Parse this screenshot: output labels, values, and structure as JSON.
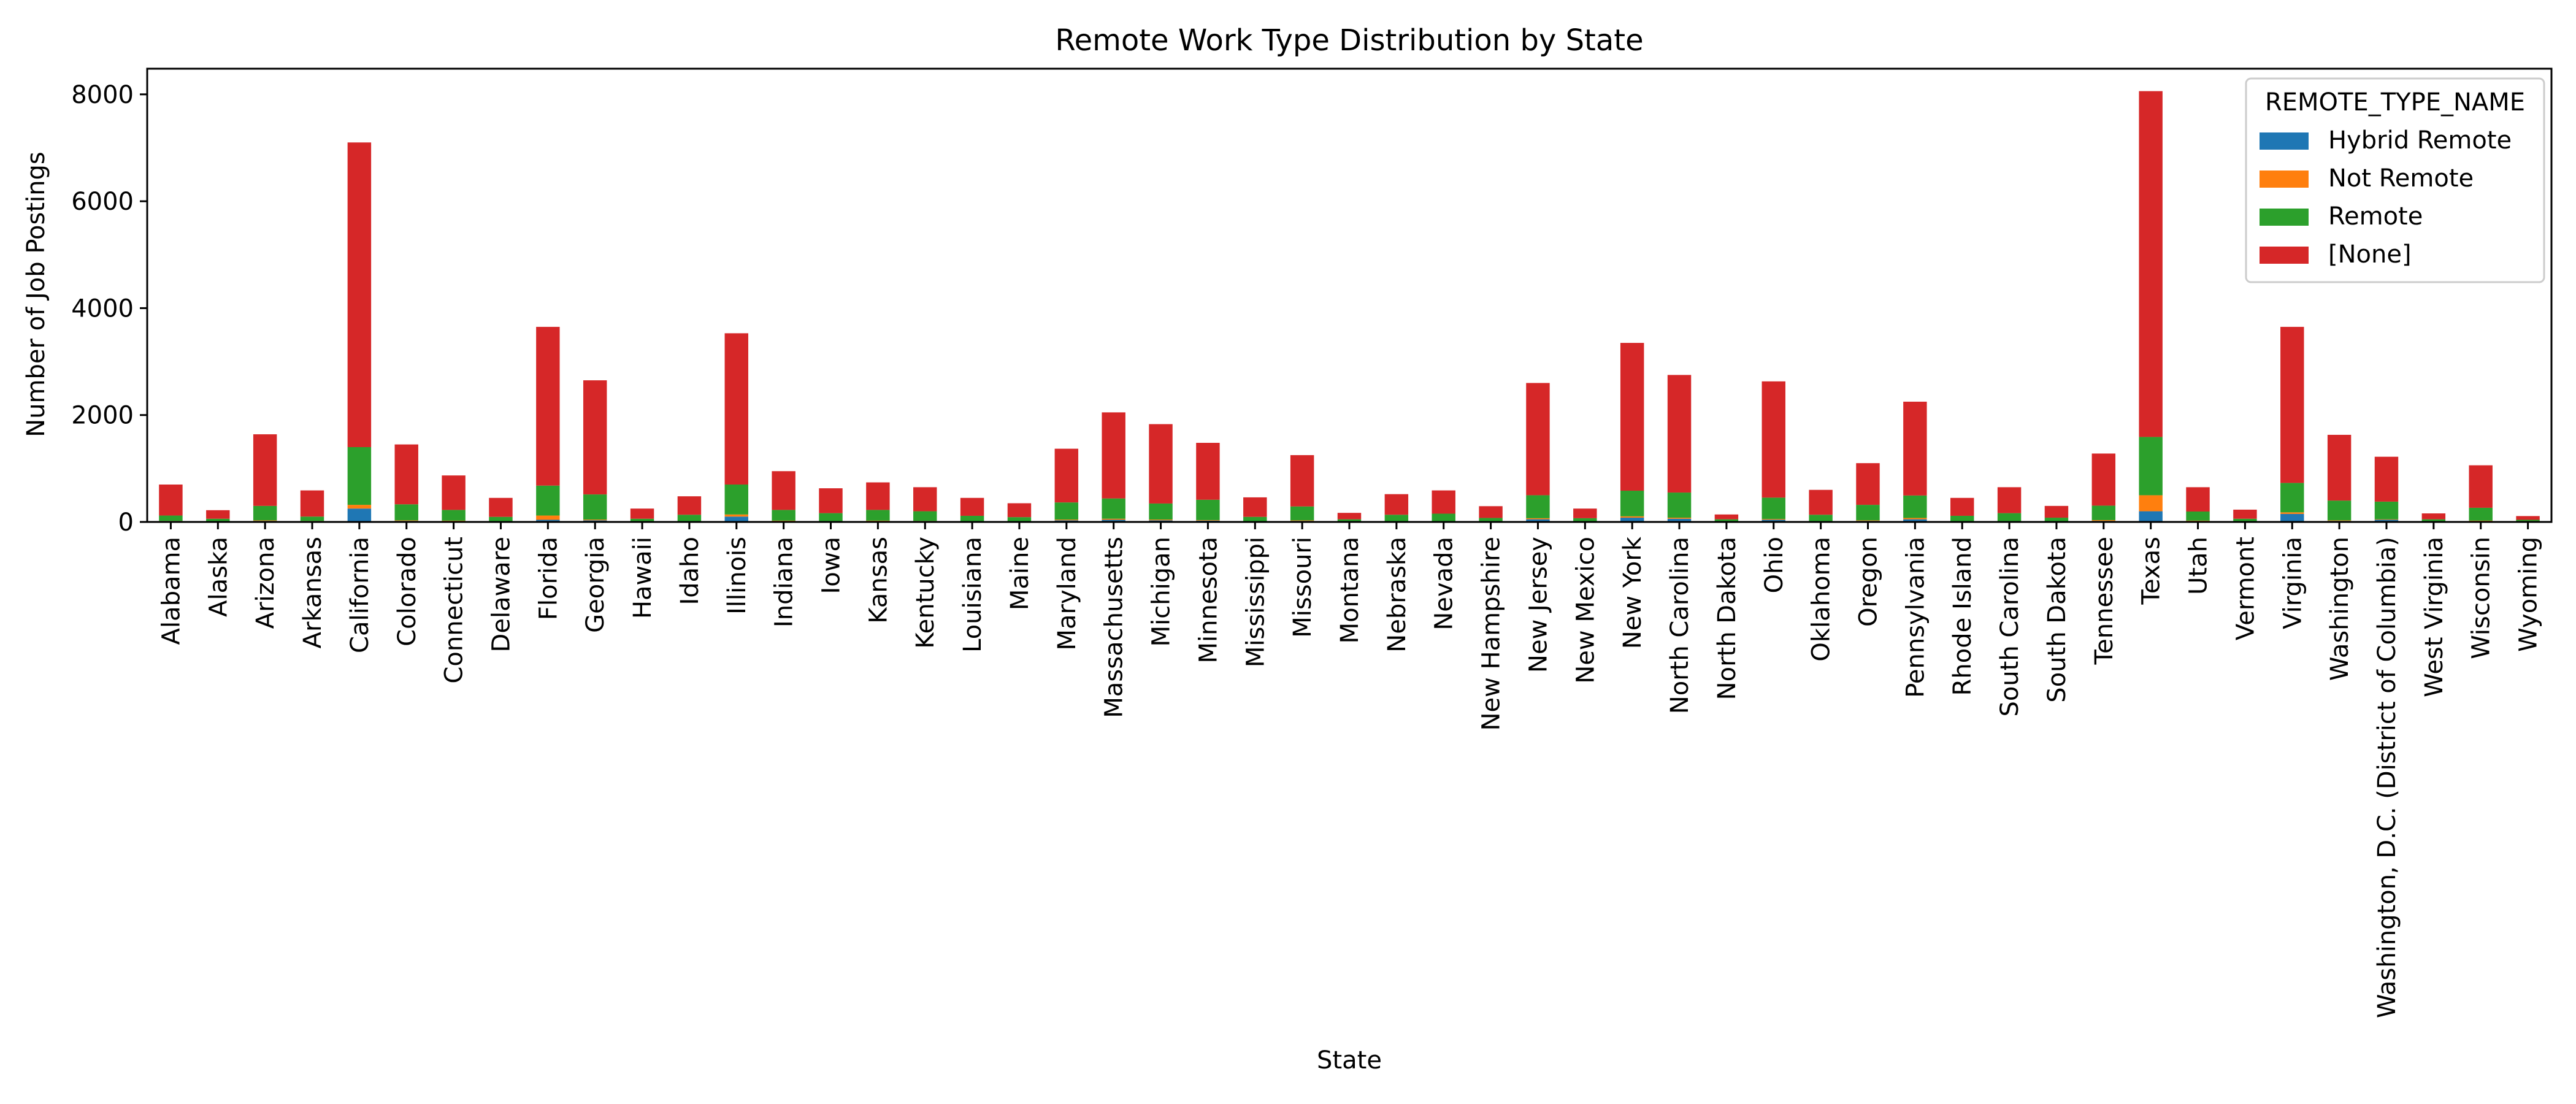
{
  "chart_data": {
    "type": "bar",
    "stacked": true,
    "title": "Remote Work Type Distribution by State",
    "xlabel": "State",
    "ylabel": "Number of Job Postings",
    "ylim": [
      0,
      8480
    ],
    "yticks": [
      0,
      2000,
      4000,
      6000,
      8000
    ],
    "grid": false,
    "legend": {
      "title": "REMOTE_TYPE_NAME",
      "placement": "top-right"
    },
    "categories": [
      "Alabama",
      "Alaska",
      "Arizona",
      "Arkansas",
      "California",
      "Colorado",
      "Connecticut",
      "Delaware",
      "Florida",
      "Georgia",
      "Hawaii",
      "Idaho",
      "Illinois",
      "Indiana",
      "Iowa",
      "Kansas",
      "Kentucky",
      "Louisiana",
      "Maine",
      "Maryland",
      "Massachusetts",
      "Michigan",
      "Minnesota",
      "Mississippi",
      "Missouri",
      "Montana",
      "Nebraska",
      "Nevada",
      "New Hampshire",
      "New Jersey",
      "New Mexico",
      "New York",
      "North Carolina",
      "North Dakota",
      "Ohio",
      "Oklahoma",
      "Oregon",
      "Pennsylvania",
      "Rhode Island",
      "South Carolina",
      "South Dakota",
      "Tennessee",
      "Texas",
      "Utah",
      "Vermont",
      "Virginia",
      "Washington",
      "Washington, D.C. (District of Columbia)",
      "West Virginia",
      "Wisconsin",
      "Wyoming"
    ],
    "series": [
      {
        "name": "Hybrid Remote",
        "color": "#1f77b4",
        "values": [
          10,
          5,
          20,
          10,
          250,
          20,
          15,
          10,
          40,
          30,
          5,
          10,
          100,
          15,
          10,
          15,
          10,
          10,
          5,
          30,
          40,
          30,
          25,
          10,
          20,
          5,
          10,
          10,
          10,
          50,
          5,
          80,
          60,
          5,
          40,
          10,
          20,
          50,
          10,
          10,
          5,
          20,
          200,
          15,
          5,
          150,
          20,
          40,
          5,
          15,
          5
        ]
      },
      {
        "name": "Not Remote",
        "color": "#ff7f0e",
        "values": [
          10,
          5,
          10,
          10,
          70,
          10,
          10,
          5,
          80,
          15,
          5,
          5,
          40,
          10,
          5,
          10,
          10,
          5,
          5,
          15,
          20,
          15,
          10,
          5,
          10,
          5,
          5,
          5,
          5,
          20,
          5,
          25,
          20,
          5,
          15,
          5,
          10,
          25,
          5,
          5,
          5,
          15,
          300,
          10,
          5,
          30,
          10,
          10,
          5,
          10,
          5
        ]
      },
      {
        "name": "Remote",
        "color": "#2ca02c",
        "values": [
          100,
          50,
          270,
          80,
          1080,
          300,
          200,
          80,
          560,
          470,
          50,
          120,
          560,
          200,
          150,
          200,
          180,
          100,
          80,
          320,
          380,
          300,
          380,
          80,
          260,
          40,
          120,
          140,
          60,
          430,
          60,
          480,
          470,
          40,
          400,
          120,
          290,
          420,
          100,
          150,
          70,
          270,
          1090,
          170,
          50,
          550,
          370,
          330,
          40,
          240,
          30
        ]
      },
      {
        "name": "[None]",
        "color": "#d62728",
        "values": [
          580,
          160,
          1340,
          490,
          5700,
          1120,
          645,
          355,
          2970,
          2135,
          190,
          345,
          2830,
          725,
          465,
          515,
          450,
          335,
          260,
          1005,
          1610,
          1485,
          1065,
          365,
          960,
          120,
          385,
          435,
          220,
          2100,
          180,
          2765,
          2200,
          90,
          2175,
          465,
          780,
          1755,
          335,
          485,
          220,
          975,
          6470,
          455,
          170,
          2920,
          1230,
          840,
          110,
          795,
          70
        ]
      }
    ]
  }
}
